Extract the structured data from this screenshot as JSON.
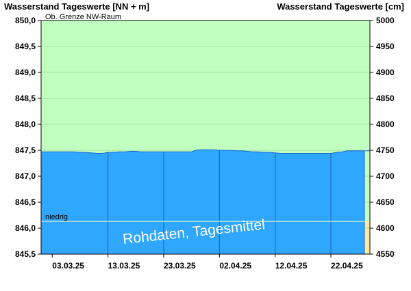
{
  "chart_data": {
    "type": "area",
    "y_left_label": "Wasserstand Tageswerte [NN + m]",
    "y_right_label": "Wasserstand Tageswerte [cm]",
    "ylim_left": [
      845.5,
      850.0
    ],
    "ylim_right": [
      4550,
      5000
    ],
    "yticks_left": [
      "850,0",
      "849,5",
      "849,0",
      "848,5",
      "848,0",
      "847,5",
      "847,0",
      "846,5",
      "846,0",
      "845,5"
    ],
    "yticks_right": [
      "5000",
      "4950",
      "4900",
      "4850",
      "4800",
      "4750",
      "4700",
      "4650",
      "4600",
      "4550"
    ],
    "xticks": [
      "03.03.25",
      "13.03.25",
      "23.03.25",
      "02.04.25",
      "12.04.25",
      "22.04.25"
    ],
    "grid": true,
    "upper_limit_label": "Ob. Grenze NW-Raum",
    "upper_limit_value": 850.0,
    "low_threshold_label": "niedrig",
    "low_threshold_value": 846.13,
    "watermark": "Rohdaten, Tagesmittel",
    "colors": {
      "normal_zone": "#c0ffc0",
      "water_fill": "#2fa7ff",
      "low_zone": "#ffe8a0",
      "threshold_line": "#ffffcc",
      "vertical_grid": "#1a5fb4"
    },
    "x": [
      "01.03.25",
      "02.03.25",
      "03.03.25",
      "04.03.25",
      "05.03.25",
      "06.03.25",
      "07.03.25",
      "08.03.25",
      "09.03.25",
      "10.03.25",
      "11.03.25",
      "12.03.25",
      "13.03.25",
      "14.03.25",
      "15.03.25",
      "16.03.25",
      "17.03.25",
      "18.03.25",
      "19.03.25",
      "20.03.25",
      "21.03.25",
      "22.03.25",
      "23.03.25",
      "24.03.25",
      "25.03.25",
      "26.03.25",
      "27.03.25",
      "28.03.25",
      "29.03.25",
      "30.03.25",
      "31.03.25",
      "01.04.25",
      "02.04.25",
      "03.04.25",
      "04.04.25",
      "05.04.25",
      "06.04.25",
      "07.04.25",
      "08.04.25",
      "09.04.25",
      "10.04.25",
      "11.04.25",
      "12.04.25",
      "13.04.25",
      "14.04.25",
      "15.04.25",
      "16.04.25",
      "17.04.25",
      "18.04.25",
      "19.04.25",
      "20.04.25",
      "21.04.25",
      "22.04.25",
      "23.04.25",
      "24.04.25",
      "25.04.25",
      "26.04.25",
      "27.04.25",
      "28.04.25",
      "29.04.25"
    ],
    "values": [
      847.47,
      847.47,
      847.47,
      847.47,
      847.47,
      847.47,
      847.47,
      847.46,
      847.46,
      847.45,
      847.44,
      847.44,
      847.46,
      847.46,
      847.47,
      847.47,
      847.48,
      847.48,
      847.47,
      847.47,
      847.47,
      847.47,
      847.47,
      847.47,
      847.47,
      847.47,
      847.47,
      847.47,
      847.51,
      847.51,
      847.51,
      847.51,
      847.5,
      847.5,
      847.5,
      847.49,
      847.49,
      847.48,
      847.47,
      847.47,
      847.46,
      847.46,
      847.45,
      847.44,
      847.44,
      847.44,
      847.44,
      847.44,
      847.44,
      847.44,
      847.44,
      847.44,
      847.44,
      847.46,
      847.47,
      847.49,
      847.49,
      847.49,
      847.49,
      847.49
    ]
  }
}
